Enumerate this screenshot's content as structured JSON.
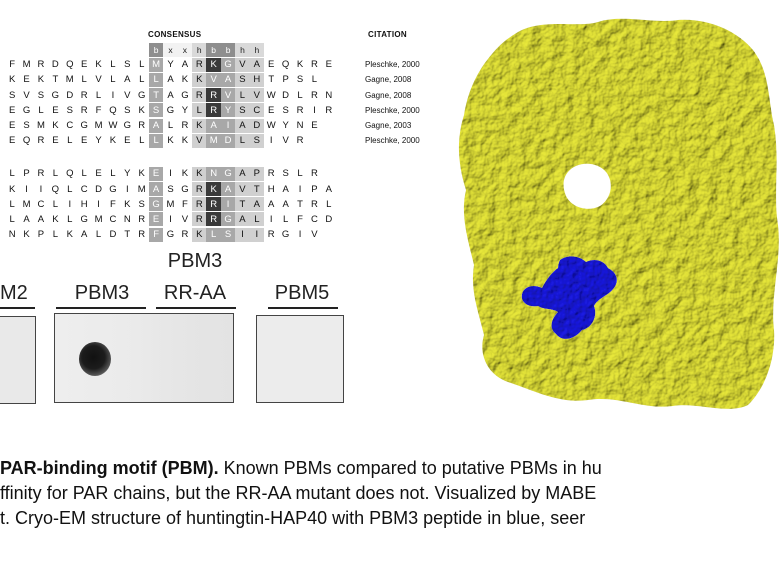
{
  "alignment": {
    "consensus_header": "CONSENSUS",
    "citation_header": "CITATION",
    "consensus": [
      "b",
      "x",
      "x",
      "h",
      "b",
      "b",
      "h",
      "h"
    ],
    "group1": [
      {
        "res": [
          "F",
          "M",
          "R",
          "D",
          "Q",
          "E",
          "K",
          "L",
          "S",
          "L",
          "M",
          "Y",
          "A",
          "R",
          "K",
          "G",
          "V",
          "A",
          "E",
          "Q",
          "K",
          "R",
          "E"
        ],
        "citation": "Pleschke, 2000"
      },
      {
        "res": [
          "K",
          "E",
          "K",
          "T",
          "M",
          "L",
          "V",
          "L",
          "A",
          "L",
          "L",
          "A",
          "K",
          "K",
          "V",
          "A",
          "S",
          "H",
          "T",
          "P",
          "S",
          "L"
        ],
        "citation": "Gagne, 2008"
      },
      {
        "res": [
          "S",
          "V",
          "S",
          "G",
          "D",
          "R",
          "L",
          "I",
          "V",
          "G",
          "T",
          "A",
          "G",
          "R",
          "R",
          "V",
          "L",
          "V",
          "W",
          "D",
          "L",
          "R",
          "N"
        ],
        "citation": "Gagne, 2008"
      },
      {
        "res": [
          "E",
          "G",
          "L",
          "E",
          "S",
          "R",
          "F",
          "Q",
          "S",
          "K",
          "S",
          "G",
          "Y",
          "L",
          "R",
          "Y",
          "S",
          "C",
          "E",
          "S",
          "R",
          "I",
          "R"
        ],
        "citation": "Pleschke, 2000"
      },
      {
        "res": [
          "E",
          "S",
          "M",
          "K",
          "C",
          "G",
          "M",
          "W",
          "G",
          "R",
          "A",
          "L",
          "R",
          "K",
          "A",
          "I",
          "A",
          "D",
          "W",
          "Y",
          "N",
          "E"
        ],
        "citation": "Gagne, 2003"
      },
      {
        "res": [
          "E",
          "Q",
          "R",
          "E",
          "L",
          "E",
          "Y",
          "K",
          "E",
          "L",
          "L",
          "K",
          "K",
          "V",
          "M",
          "D",
          "L",
          "S",
          "I",
          "V",
          "R"
        ],
        "citation": "Pleschke, 2000"
      }
    ],
    "group2": [
      {
        "res": [
          "L",
          "P",
          "R",
          "L",
          "Q",
          "L",
          "E",
          "L",
          "Y",
          "K",
          "E",
          "I",
          "K",
          "K",
          "N",
          "G",
          "A",
          "P",
          "R",
          "S",
          "L",
          "R"
        ]
      },
      {
        "res": [
          "K",
          "I",
          "I",
          "Q",
          "L",
          "C",
          "D",
          "G",
          "I",
          "M",
          "A",
          "S",
          "G",
          "R",
          "K",
          "A",
          "V",
          "T",
          "H",
          "A",
          "I",
          "P",
          "A"
        ]
      },
      {
        "res": [
          "L",
          "M",
          "C",
          "L",
          "I",
          "H",
          "I",
          "F",
          "K",
          "S",
          "G",
          "M",
          "F",
          "R",
          "R",
          "I",
          "T",
          "A",
          "A",
          "A",
          "T",
          "R",
          "L"
        ]
      },
      {
        "res": [
          "L",
          "A",
          "A",
          "K",
          "L",
          "G",
          "M",
          "C",
          "N",
          "R",
          "E",
          "I",
          "V",
          "R",
          "R",
          "G",
          "A",
          "L",
          "I",
          "L",
          "F",
          "C",
          "D"
        ]
      },
      {
        "res": [
          "N",
          "K",
          "P",
          "L",
          "K",
          "A",
          "L",
          "D",
          "T",
          "R",
          "F",
          "G",
          "R",
          "K",
          "L",
          "S",
          "I",
          "I",
          "R",
          "G",
          "I",
          "V"
        ]
      }
    ]
  },
  "blots": {
    "labels": [
      "M2",
      "PBM3",
      "PBM3 RR-AA",
      "PBM5"
    ],
    "label_rr_line1": "PBM3",
    "label_rr_line2": "RR-AA"
  },
  "structure": {
    "protein_color": "#e8e83a",
    "peptide_color": "#1a1ae0"
  },
  "caption": {
    "bold": "PAR-binding motif (PBM).",
    "line1_rest": " Known PBMs compared to putative PBMs in hu",
    "line2": "ffinity for PAR chains, but the RR-AA mutant does not. Visualized by MABE",
    "line3": "t. Cryo-EM structure of huntingtin-HAP40 with PBM3 peptide in blue, seer"
  }
}
